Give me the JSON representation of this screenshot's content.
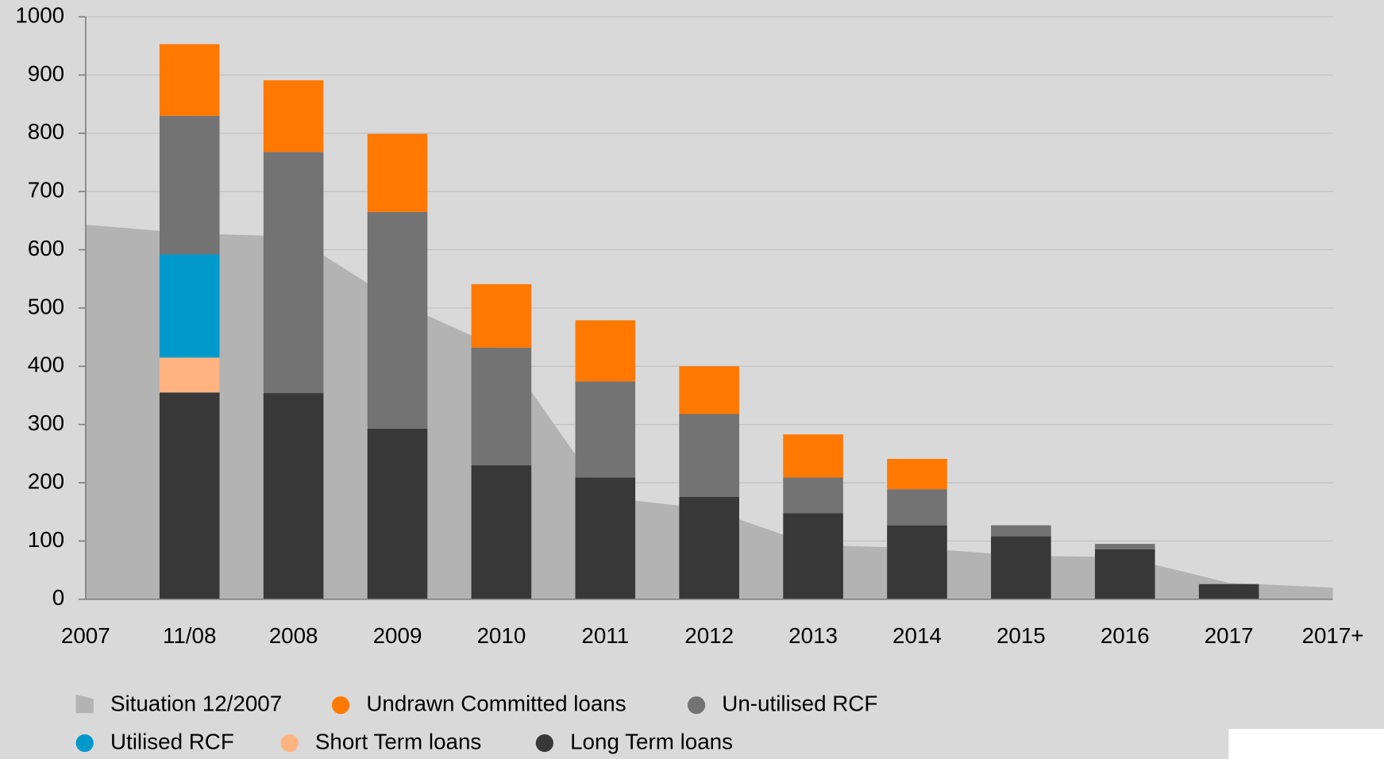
{
  "chart_data": {
    "type": "stacked_bar",
    "categories": [
      "2007",
      "11/08",
      "2008",
      "2009",
      "2010",
      "2011",
      "2012",
      "2013",
      "2014",
      "2015",
      "2016",
      "2017",
      "2017+"
    ],
    "ylim": [
      0,
      1000
    ],
    "yticks": [
      0,
      100,
      200,
      300,
      400,
      500,
      600,
      700,
      800,
      900,
      1000
    ],
    "grid": true,
    "area": {
      "name": "Situation 12/2007",
      "color": "#b3b3b3",
      "values": [
        643,
        628,
        623,
        510,
        430,
        175,
        155,
        93,
        88,
        75,
        72,
        28,
        20
      ]
    },
    "series": [
      {
        "name": "Long Term loans",
        "color": "#383838",
        "values": [
          null,
          355,
          354,
          293,
          230,
          209,
          176,
          148,
          127,
          108,
          86,
          26,
          null
        ]
      },
      {
        "name": "Short Term loans",
        "color": "#ffb380",
        "values": [
          null,
          60,
          0,
          0,
          0,
          0,
          0,
          0,
          0,
          0,
          0,
          0,
          null
        ]
      },
      {
        "name": "Utilised RCF",
        "color": "#0099cc",
        "values": [
          null,
          177,
          0,
          0,
          0,
          0,
          0,
          0,
          0,
          0,
          0,
          0,
          null
        ]
      },
      {
        "name": "Un-utilised RCF",
        "color": "#737373",
        "values": [
          null,
          238,
          414,
          372,
          202,
          165,
          142,
          61,
          62,
          19,
          9,
          0,
          null
        ]
      },
      {
        "name": "Undrawn Committed loans",
        "color": "#ff7800",
        "values": [
          null,
          123,
          123,
          134,
          109,
          105,
          82,
          74,
          52,
          0,
          0,
          0,
          null
        ]
      }
    ]
  }
}
